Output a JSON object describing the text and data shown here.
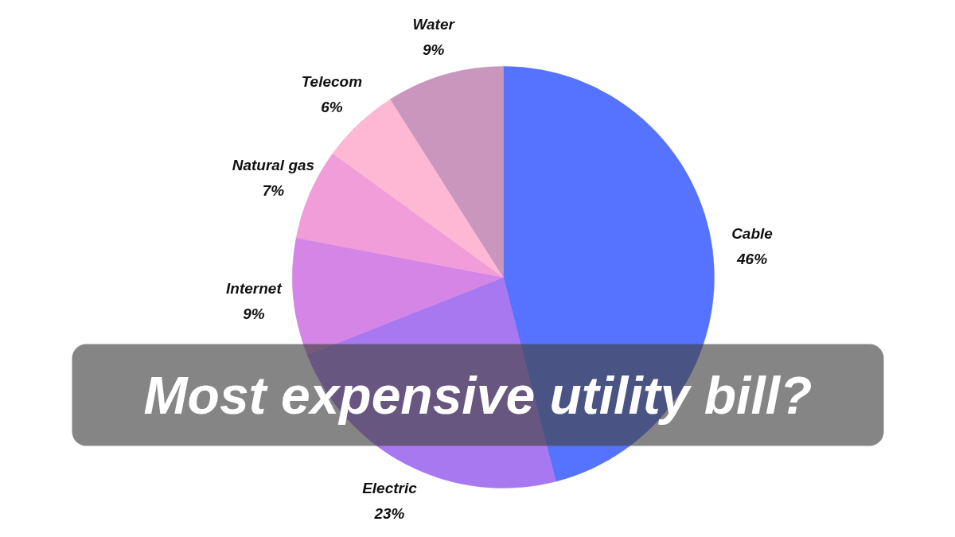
{
  "chart_data": {
    "type": "pie",
    "title": "Most expensive utility bill?",
    "categories": [
      "Cable",
      "Electric",
      "Internet",
      "Natural gas",
      "Telecom",
      "Water"
    ],
    "values": [
      46,
      23,
      9,
      7,
      6,
      9
    ],
    "value_labels": [
      "46%",
      "23%",
      "9%",
      "7%",
      "6%",
      "9%"
    ],
    "colors": [
      "#5573fe",
      "#a878f0",
      "#d585e6",
      "#f09dd9",
      "#feb8d4",
      "#c996be"
    ]
  }
}
